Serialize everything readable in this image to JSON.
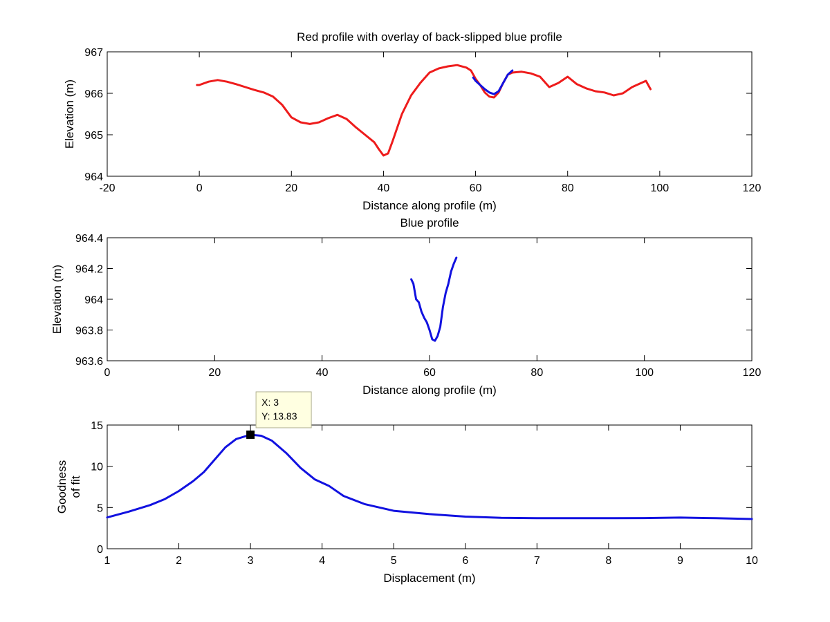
{
  "chart_data": [
    {
      "type": "line",
      "title": "Red profile with overlay of back-slipped blue profile",
      "xlabel": "Distance along profile (m)",
      "ylabel": "Elevation (m)",
      "xlim": [
        -20,
        120
      ],
      "ylim": [
        964,
        967
      ],
      "xticks": [
        -20,
        0,
        20,
        40,
        60,
        80,
        100,
        120
      ],
      "yticks": [
        964,
        965,
        966,
        967
      ],
      "xtick_labels": [
        "-20",
        "0",
        "20",
        "40",
        "60",
        "80",
        "100",
        "120"
      ],
      "ytick_labels": [
        "964",
        "965",
        "966",
        "967"
      ],
      "series": [
        {
          "name": "Red profile",
          "color": "#ee1c1c",
          "x": [
            -0.5,
            0,
            2,
            4,
            6,
            8,
            10,
            12,
            14,
            16,
            18,
            20,
            22,
            24,
            26,
            28,
            30,
            32,
            34,
            36,
            38,
            39,
            40,
            41,
            42,
            44,
            46,
            48,
            50,
            52,
            54,
            56,
            58,
            59,
            60,
            61,
            62,
            63,
            64,
            65,
            66,
            67,
            68,
            70,
            72,
            74,
            76,
            78,
            80,
            82,
            84,
            86,
            88,
            90,
            92,
            94,
            96,
            97,
            98
          ],
          "y": [
            966.2,
            966.2,
            966.28,
            966.32,
            966.28,
            966.22,
            966.15,
            966.08,
            966.02,
            965.92,
            965.72,
            965.42,
            965.3,
            965.26,
            965.3,
            965.4,
            965.48,
            965.38,
            965.18,
            965.0,
            964.82,
            964.65,
            964.5,
            964.55,
            964.85,
            965.5,
            965.95,
            966.25,
            966.5,
            966.6,
            966.65,
            966.68,
            966.62,
            966.55,
            966.35,
            966.2,
            966.02,
            965.92,
            965.9,
            966.02,
            966.25,
            966.45,
            966.5,
            966.52,
            966.48,
            966.4,
            966.15,
            966.25,
            966.4,
            966.22,
            966.12,
            966.05,
            966.02,
            965.95,
            966.0,
            966.15,
            966.25,
            966.3,
            966.1
          ]
        },
        {
          "name": "Back-slipped blue profile",
          "color": "#1212e0",
          "x": [
            59.5,
            60,
            61,
            62,
            63,
            64,
            65,
            66,
            67,
            68
          ],
          "y": [
            966.38,
            966.3,
            966.2,
            966.1,
            966.02,
            965.98,
            966.05,
            966.25,
            966.45,
            966.55
          ]
        }
      ]
    },
    {
      "type": "line",
      "title": "Blue profile",
      "xlabel": "Distance along profile (m)",
      "ylabel": "Elevation (m)",
      "xlim": [
        0,
        120
      ],
      "ylim": [
        963.6,
        964.4
      ],
      "xticks": [
        0,
        20,
        40,
        60,
        80,
        100,
        120
      ],
      "yticks": [
        963.6,
        963.8,
        964.0,
        964.2,
        964.4
      ],
      "xtick_labels": [
        "0",
        "20",
        "40",
        "60",
        "80",
        "100",
        "120"
      ],
      "ytick_labels": [
        "963.6",
        "963.8",
        "964",
        "964.2",
        "964.4"
      ],
      "series": [
        {
          "name": "Blue profile",
          "color": "#1212e0",
          "x": [
            56.6,
            57,
            57.5,
            58,
            58.5,
            59,
            59.5,
            60,
            60.5,
            61,
            61.5,
            62,
            62.5,
            63,
            63.5,
            64,
            64.5,
            65
          ],
          "y": [
            964.13,
            964.1,
            964.0,
            963.98,
            963.92,
            963.88,
            963.85,
            963.8,
            963.74,
            963.73,
            963.76,
            963.82,
            963.95,
            964.04,
            964.1,
            964.18,
            964.23,
            964.27
          ]
        }
      ]
    },
    {
      "type": "line",
      "title": "",
      "xlabel": "Displacement (m)",
      "ylabel": [
        "Goodness",
        "of fit"
      ],
      "xlim": [
        1,
        10
      ],
      "ylim": [
        0,
        15
      ],
      "xticks": [
        1,
        2,
        3,
        4,
        5,
        6,
        7,
        8,
        9,
        10
      ],
      "yticks": [
        0,
        5,
        10,
        15
      ],
      "xtick_labels": [
        "1",
        "2",
        "3",
        "4",
        "5",
        "6",
        "7",
        "8",
        "9",
        "10"
      ],
      "ytick_labels": [
        "0",
        "5",
        "10",
        "15"
      ],
      "series": [
        {
          "name": "Goodness of fit",
          "color": "#1212e0",
          "x": [
            1,
            1.3,
            1.6,
            1.8,
            2.0,
            2.2,
            2.35,
            2.5,
            2.65,
            2.8,
            3.0,
            3.15,
            3.3,
            3.5,
            3.7,
            3.9,
            4.1,
            4.3,
            4.6,
            5.0,
            5.5,
            6.0,
            6.5,
            7.0,
            7.5,
            8.0,
            8.5,
            9.0,
            9.5,
            10
          ],
          "y": [
            3.8,
            4.5,
            5.3,
            6.0,
            7.0,
            8.2,
            9.3,
            10.8,
            12.3,
            13.3,
            13.83,
            13.7,
            13.1,
            11.6,
            9.8,
            8.4,
            7.6,
            6.4,
            5.4,
            4.6,
            4.2,
            3.9,
            3.75,
            3.7,
            3.7,
            3.7,
            3.72,
            3.78,
            3.7,
            3.6
          ]
        }
      ],
      "datatip": {
        "x": 3,
        "y": 13.83,
        "x_text": "X: 3",
        "y_text": "Y: 13.83"
      }
    }
  ]
}
